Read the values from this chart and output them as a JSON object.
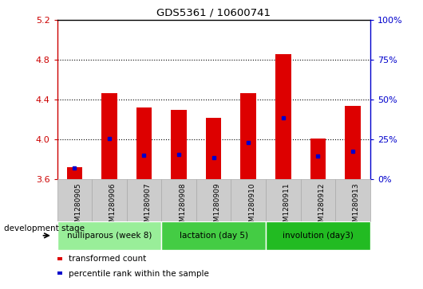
{
  "title": "GDS5361 / 10600741",
  "samples": [
    "GSM1280905",
    "GSM1280906",
    "GSM1280907",
    "GSM1280908",
    "GSM1280909",
    "GSM1280910",
    "GSM1280911",
    "GSM1280912",
    "GSM1280913"
  ],
  "red_top": [
    3.72,
    4.47,
    4.32,
    4.3,
    4.22,
    4.47,
    4.86,
    4.01,
    4.34
  ],
  "blue_pos": [
    3.71,
    4.01,
    3.84,
    3.85,
    3.82,
    3.97,
    4.22,
    3.83,
    3.88
  ],
  "ylim_left": [
    3.6,
    5.2
  ],
  "ylim_right": [
    0,
    100
  ],
  "yticks_left": [
    3.6,
    4.0,
    4.4,
    4.8,
    5.2
  ],
  "yticks_right": [
    0,
    25,
    50,
    75,
    100
  ],
  "bar_color": "#dd0000",
  "blue_color": "#0000cc",
  "bar_bottom": 3.6,
  "bar_width": 0.45,
  "groups": [
    {
      "label": "nulliparous (week 8)",
      "indices": [
        0,
        1,
        2
      ],
      "color": "#99ee99"
    },
    {
      "label": "lactation (day 5)",
      "indices": [
        3,
        4,
        5
      ],
      "color": "#44cc44"
    },
    {
      "label": "involution (day3)",
      "indices": [
        6,
        7,
        8
      ],
      "color": "#22bb22"
    }
  ],
  "legend_red": "transformed count",
  "legend_blue": "percentile rank within the sample",
  "dev_stage_label": "development stage",
  "tick_color_left": "#cc0000",
  "tick_color_right": "#0000cc",
  "grid_color": "black",
  "grid_lines": [
    4.0,
    4.4,
    4.8
  ],
  "sample_box_color": "#cccccc",
  "sample_box_edge": "#aaaaaa"
}
